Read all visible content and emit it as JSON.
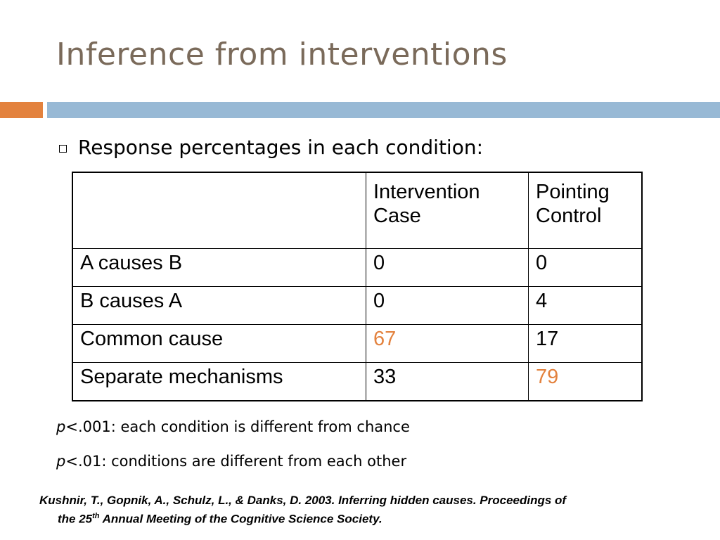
{
  "slide": {
    "title": "Inference from interventions",
    "bullet": "Response percentages in each condition:",
    "table": {
      "headers": [
        "",
        "Intervention Case",
        "Pointing Control"
      ],
      "header_lines": {
        "col1": [
          "Intervention",
          "Case"
        ],
        "col2": [
          "Pointing",
          "Control"
        ]
      },
      "rows": [
        {
          "label": "A causes B",
          "intervention": "0",
          "pointing": "0"
        },
        {
          "label": "B causes A",
          "intervention": "0",
          "pointing": "4"
        },
        {
          "label": "Common cause",
          "intervention": "67",
          "pointing": "17"
        },
        {
          "label": "Separate mechanisms",
          "intervention": "33",
          "pointing": "79"
        }
      ]
    },
    "notes": [
      {
        "p": "p",
        "text": "<.001: each condition is different from chance"
      },
      {
        "p": "p",
        "text": "<.01: conditions are different from each other"
      }
    ],
    "reference": {
      "line1": "Kushnir, T., Gopnik, A., Schulz, L., & Danks, D. 2003. Inferring hidden causes. Proceedings of",
      "line2_prefix": "the 25",
      "line2_sup": "th",
      "line2_suffix": " Annual Meeting of the Cognitive Science Society."
    },
    "colors": {
      "title": "#7a6a5a",
      "accent_orange": "#e3823e",
      "accent_blue": "#98b9d5",
      "highlight": "#e3823e"
    },
    "icons": {
      "bullet": "hollow-square-bullet-icon"
    }
  }
}
